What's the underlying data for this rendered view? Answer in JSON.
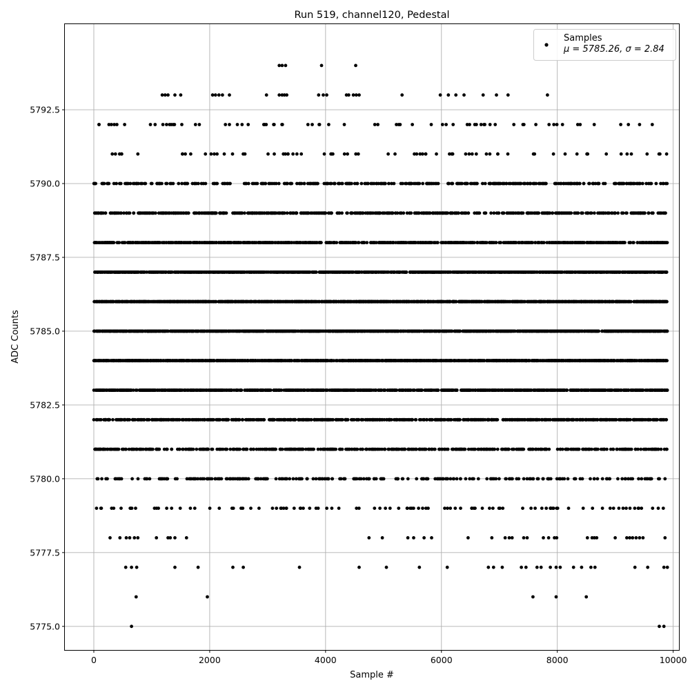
{
  "chart_data": {
    "type": "scatter",
    "title": "Run 519, channel120, Pedestal",
    "xlabel": "Sample #",
    "ylabel": "ADC Counts",
    "xlim": [
      -500,
      10100
    ],
    "ylim": [
      5774.2,
      5795.4
    ],
    "xticks": [
      0,
      2000,
      4000,
      6000,
      8000,
      10000
    ],
    "yticks": [
      5775.0,
      5777.5,
      5780.0,
      5782.5,
      5785.0,
      5787.5,
      5790.0,
      5792.5
    ],
    "ytick_labels": [
      "5775.0",
      "5777.5",
      "5780.0",
      "5782.5",
      "5785.0",
      "5787.5",
      "5790.0",
      "5792.5"
    ],
    "grid": true,
    "legend": {
      "placement": "top-right",
      "name": "Samples",
      "stats_text": "μ = 5785.26, σ = 2.84"
    },
    "series": [
      {
        "name": "Samples",
        "color": "#000000",
        "marker": "circle",
        "n_samples": 9900,
        "mean": 5785.26,
        "sigma": 2.84,
        "sparse_points": {
          "5775": [
            650,
            9760,
            9840
          ],
          "5776": [
            730,
            1960,
            7580,
            7980,
            8500
          ],
          "5777": [
            550,
            650,
            740,
            1400,
            1800,
            2400,
            2580,
            3550,
            4580,
            5050,
            5620,
            6100,
            6810,
            6900,
            7050,
            7380,
            7460,
            7650,
            7720,
            7880,
            7980,
            8050,
            8280,
            8420,
            8580,
            8650,
            9340,
            9560,
            9840,
            9900
          ],
          "5778": [
            280,
            450,
            560,
            620,
            700,
            760,
            1080,
            1280,
            1320,
            1400,
            1600,
            4750,
            4980,
            5420,
            5520,
            5700,
            5830,
            6460,
            6870,
            7100,
            7170,
            7220,
            7420,
            7480,
            7760,
            7850,
            7950,
            7990,
            8520,
            8600,
            8640,
            8680,
            9000,
            9200,
            9250,
            9300,
            9360,
            9420,
            9480,
            9860
          ],
          "5793": [
            1180,
            1230,
            1280,
            1400,
            1500,
            2050,
            2100,
            2160,
            2220,
            2340,
            2980,
            3200,
            3250,
            3290,
            3330,
            3880,
            3960,
            4020,
            4360,
            4400,
            4480,
            4530,
            4580,
            5320,
            5980,
            6120,
            6250,
            6390,
            6720,
            6950,
            7150,
            7830
          ],
          "5794": [
            3200,
            3250,
            3310,
            3930,
            4520
          ]
        }
      }
    ]
  }
}
